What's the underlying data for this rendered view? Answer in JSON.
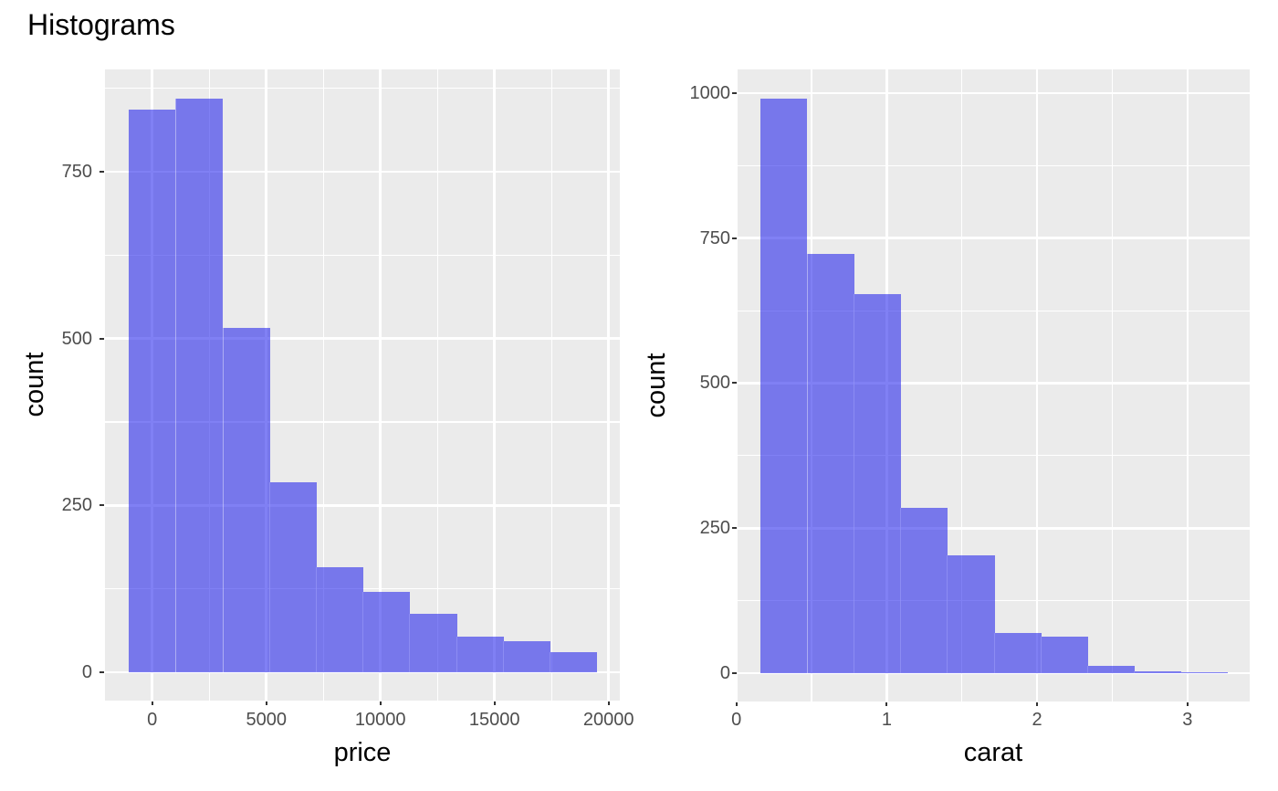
{
  "title": "Histograms",
  "colors": {
    "background": "#FFFFFF",
    "panel_background": "#EBEBEB",
    "gridline": "#FFFFFF",
    "bar_fill": "rgba(15,15,235,0.53)",
    "bar_fill_apparent": "#7476EB",
    "tick_mark": "#333333",
    "tick_label_text": "#4D4D4D",
    "axis_title_text": "#000000",
    "title_text": "#000000"
  },
  "chart_data": [
    {
      "type": "bar",
      "subtype": "histogram",
      "xlabel": "price",
      "ylabel": "count",
      "bin_start": -1028,
      "bin_width": 2050,
      "counts": [
        843,
        859,
        516,
        285,
        157,
        120,
        87,
        54,
        46,
        30
      ],
      "x_domain": [
        -2053,
        20497
      ],
      "y_domain": [
        -43,
        903
      ],
      "x_ticks": [
        0,
        5000,
        10000,
        15000,
        20000
      ],
      "x_tick_labels": [
        "0",
        "5000",
        "10000",
        "15000",
        "20000"
      ],
      "x_minor_ticks": [
        2500,
        7500,
        12500,
        17500
      ],
      "y_ticks": [
        0,
        250,
        500,
        750
      ],
      "y_tick_labels": [
        "0",
        "250",
        "500",
        "750"
      ],
      "y_minor_ticks": [
        125,
        375,
        625,
        875
      ],
      "grid": true,
      "legend": false
    },
    {
      "type": "bar",
      "subtype": "histogram",
      "xlabel": "carat",
      "ylabel": "count",
      "bin_start": 0.158,
      "bin_width": 0.3107,
      "counts": [
        991,
        723,
        653,
        285,
        203,
        70,
        63,
        12,
        3,
        2
      ],
      "x_domain": [
        0.005,
        3.415
      ],
      "y_domain": [
        -49.5,
        1040.5
      ],
      "x_ticks": [
        0,
        1,
        2,
        3
      ],
      "x_tick_labels": [
        "0",
        "1",
        "2",
        "3"
      ],
      "x_minor_ticks": [
        0.5,
        1.5,
        2.5
      ],
      "y_ticks": [
        0,
        250,
        500,
        750,
        1000
      ],
      "y_tick_labels": [
        "0",
        "250",
        "500",
        "750",
        "1000"
      ],
      "y_minor_ticks": [
        125,
        375,
        625,
        875
      ],
      "grid": true,
      "legend": false
    }
  ]
}
